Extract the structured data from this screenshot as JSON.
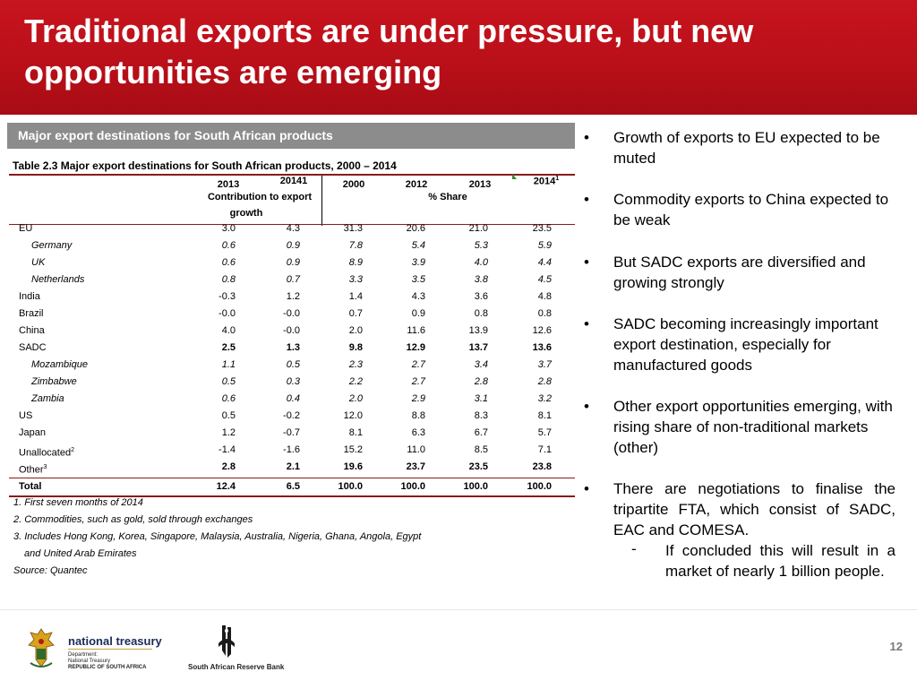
{
  "title": "Traditional exports are under pressure, but new opportunities are emerging",
  "section_label": "Major export destinations for South African products",
  "table": {
    "caption": "Table 2.3  Major export destinations for South African products, 2000 – 2014",
    "hdr_2013": "2013",
    "hdr_20141": "20141",
    "hdr_contrib": "Contribution to export",
    "hdr_growth": "growth",
    "hdr_2000": "2000",
    "hdr_2012": "2012",
    "hdr_2013b": "2013",
    "hdr_2014": "2014",
    "hdr_2014_sup": "1",
    "hdr_share": "% Share",
    "rows": [
      {
        "label": "EU",
        "v": [
          "3.0",
          "4.3",
          "31.3",
          "20.6",
          "21.0",
          "23.5"
        ]
      },
      {
        "label": "Germany",
        "v": [
          "0.6",
          "0.9",
          "7.8",
          "5.4",
          "5.3",
          "5.9"
        ]
      },
      {
        "label": "UK",
        "v": [
          "0.6",
          "0.9",
          "8.9",
          "3.9",
          "4.0",
          "4.4"
        ]
      },
      {
        "label": "Netherlands",
        "v": [
          "0.8",
          "0.7",
          "3.3",
          "3.5",
          "3.8",
          "4.5"
        ]
      },
      {
        "label": "India",
        "v": [
          "-0.3",
          "1.2",
          "1.4",
          "4.3",
          "3.6",
          "4.8"
        ]
      },
      {
        "label": "Brazil",
        "v": [
          "-0.0",
          "-0.0",
          "0.7",
          "0.9",
          "0.8",
          "0.8"
        ]
      },
      {
        "label": "China",
        "v": [
          "4.0",
          "-0.0",
          "2.0",
          "11.6",
          "13.9",
          "12.6"
        ]
      },
      {
        "label": "SADC",
        "v": [
          "2.5",
          "1.3",
          "9.8",
          "12.9",
          "13.7",
          "13.6"
        ]
      },
      {
        "label": "Mozambique",
        "v": [
          "1.1",
          "0.5",
          "2.3",
          "2.7",
          "3.4",
          "3.7"
        ]
      },
      {
        "label": "Zimbabwe",
        "v": [
          "0.5",
          "0.3",
          "2.2",
          "2.7",
          "2.8",
          "2.8"
        ]
      },
      {
        "label": "Zambia",
        "v": [
          "0.6",
          "0.4",
          "2.0",
          "2.9",
          "3.1",
          "3.2"
        ]
      },
      {
        "label": "US",
        "v": [
          "0.5",
          "-0.2",
          "12.0",
          "8.8",
          "8.3",
          "8.1"
        ]
      },
      {
        "label": "Japan",
        "v": [
          "1.2",
          "-0.7",
          "8.1",
          "6.3",
          "6.7",
          "5.7"
        ]
      },
      {
        "label": "Unallocated",
        "sup": "2",
        "v": [
          "-1.4",
          "-1.6",
          "15.2",
          "11.0",
          "8.5",
          "7.1"
        ]
      },
      {
        "label": "Other",
        "sup": "3",
        "v": [
          "2.8",
          "2.1",
          "19.6",
          "23.7",
          "23.5",
          "23.8"
        ]
      },
      {
        "label": "Total",
        "v": [
          "12.4",
          "6.5",
          "100.0",
          "100.0",
          "100.0",
          "100.0"
        ]
      }
    ],
    "footnotes": [
      "1. First seven months of 2014",
      "2. Commodities, such as gold, sold through exchanges",
      "3. Includes Hong Kong, Korea, Singapore, Malaysia, Australia, Nigeria, Ghana, Angola, Egypt",
      "and United Arab Emirates",
      "Source: Quantec"
    ]
  },
  "bullets": [
    "Growth of exports to EU expected to be muted",
    "Commodity exports to China expected to be weak",
    "But SADC exports are diversified and growing strongly",
    "SADC becoming increasingly important export destination, especially for manufactured goods",
    "Other export opportunities emerging, with rising share of non-traditional markets (other)",
    "There are negotiations to finalise the tripartite FTA, which consist of SADC, EAC and COMESA."
  ],
  "sub_bullet": "If concluded this will result in a market of nearly 1 billion people.",
  "bullet_glyph": "•",
  "dash_glyph": "-",
  "footer": {
    "treasury_name": "national treasury",
    "treasury_line1": "Department:",
    "treasury_line2": "National Treasury",
    "treasury_line3": "REPUBLIC OF SOUTH AFRICA",
    "reserve_bank": "South African Reserve Bank",
    "page_number": "12"
  },
  "colors": {
    "header_red": "#c8141e",
    "section_grey": "#8c8c8c",
    "rule": "#8b1a1a"
  }
}
